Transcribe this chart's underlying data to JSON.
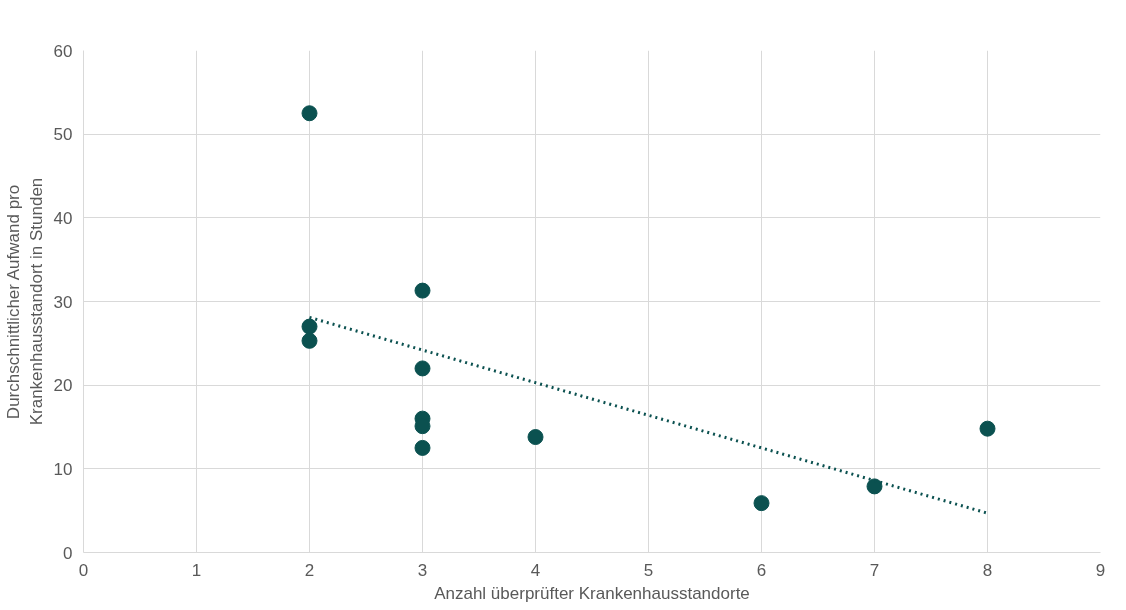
{
  "chart_data": {
    "type": "scatter",
    "xlabel": "Anzahl überprüfter Krankenhausstandorte",
    "ylabel": "Durchschnittlicher Aufwand pro\nKrankenhausstandort in Stunden",
    "xlim": [
      0,
      9
    ],
    "xticks": [
      0,
      1,
      2,
      3,
      4,
      5,
      6,
      7,
      8,
      9
    ],
    "ylim": [
      0,
      60
    ],
    "yticks": [
      0,
      10,
      20,
      30,
      40,
      50,
      60
    ],
    "grid": true,
    "series": [
      {
        "marker": "circle",
        "color": "#0b5150",
        "x": [
          2,
          2,
          2,
          3,
          3,
          3,
          3,
          3,
          4,
          6,
          7,
          8
        ],
        "values": [
          52.5,
          27,
          25.3,
          31.3,
          22,
          16,
          15.1,
          12.5,
          13.8,
          5.9,
          7.9,
          14.8
        ]
      },
      {
        "type": "line",
        "color": "#0b5150",
        "line_style": "dotted",
        "x": [
          2,
          8
        ],
        "values": [
          28.1,
          4.7
        ]
      }
    ]
  }
}
